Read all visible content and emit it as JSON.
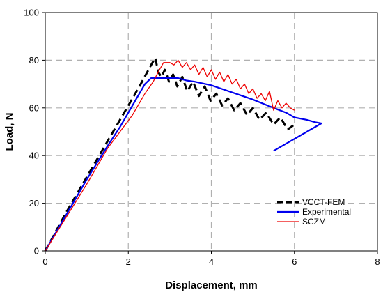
{
  "chart_data": {
    "type": "line",
    "title": "",
    "xlabel": "Displacement, mm",
    "ylabel": "Load, N",
    "xlim": [
      0,
      8
    ],
    "ylim": [
      0,
      100
    ],
    "xticks": [
      0,
      2,
      4,
      6,
      8
    ],
    "yticks": [
      0,
      20,
      40,
      60,
      80,
      100
    ],
    "grid": "dashed",
    "legend_position": "bottom-right",
    "series": [
      {
        "name": "VCCT-FEM",
        "color": "#000000",
        "style": "dashed",
        "points": [
          [
            0,
            0
          ],
          [
            0.5,
            16
          ],
          [
            1.0,
            31
          ],
          [
            1.5,
            46
          ],
          [
            2.0,
            61
          ],
          [
            2.3,
            70
          ],
          [
            2.55,
            78
          ],
          [
            2.65,
            81
          ],
          [
            2.72,
            75
          ],
          [
            2.8,
            73
          ],
          [
            2.88,
            76
          ],
          [
            2.98,
            71
          ],
          [
            3.08,
            74
          ],
          [
            3.18,
            69
          ],
          [
            3.3,
            73
          ],
          [
            3.42,
            67
          ],
          [
            3.56,
            71
          ],
          [
            3.7,
            65
          ],
          [
            3.84,
            69
          ],
          [
            3.98,
            63
          ],
          [
            4.12,
            66
          ],
          [
            4.26,
            61
          ],
          [
            4.4,
            64
          ],
          [
            4.55,
            59
          ],
          [
            4.7,
            62
          ],
          [
            4.86,
            57
          ],
          [
            5.0,
            60
          ],
          [
            5.16,
            55
          ],
          [
            5.32,
            58
          ],
          [
            5.5,
            53
          ],
          [
            5.66,
            56
          ],
          [
            5.84,
            51
          ],
          [
            6.0,
            53
          ]
        ]
      },
      {
        "name": "Experimental",
        "color": "#0000ee",
        "style": "solid",
        "points": [
          [
            0,
            0
          ],
          [
            0.5,
            15
          ],
          [
            1.0,
            30
          ],
          [
            1.5,
            44
          ],
          [
            1.8,
            52
          ],
          [
            2.0,
            58
          ],
          [
            2.2,
            64
          ],
          [
            2.4,
            70
          ],
          [
            2.55,
            72.5
          ],
          [
            3.0,
            72.5
          ],
          [
            3.2,
            72.5
          ],
          [
            3.4,
            71.5
          ],
          [
            3.6,
            71
          ],
          [
            4.0,
            69.5
          ],
          [
            4.5,
            66.5
          ],
          [
            5.0,
            63.5
          ],
          [
            5.5,
            60
          ],
          [
            5.8,
            58
          ],
          [
            6.0,
            56
          ],
          [
            6.3,
            55
          ],
          [
            6.5,
            54
          ],
          [
            6.65,
            53.5
          ],
          [
            6.3,
            50
          ],
          [
            5.9,
            46
          ],
          [
            5.5,
            42
          ]
        ]
      },
      {
        "name": "SCZM",
        "color": "#ee0000",
        "style": "solid",
        "points": [
          [
            0,
            0
          ],
          [
            0.5,
            14
          ],
          [
            1.0,
            28
          ],
          [
            1.5,
            43
          ],
          [
            1.8,
            50
          ],
          [
            2.1,
            57
          ],
          [
            2.4,
            66
          ],
          [
            2.6,
            71
          ],
          [
            2.75,
            76
          ],
          [
            2.85,
            79
          ],
          [
            3.0,
            79
          ],
          [
            3.1,
            78
          ],
          [
            3.2,
            80
          ],
          [
            3.3,
            77
          ],
          [
            3.4,
            79
          ],
          [
            3.5,
            76
          ],
          [
            3.6,
            78
          ],
          [
            3.7,
            74
          ],
          [
            3.8,
            77
          ],
          [
            3.9,
            73
          ],
          [
            4.0,
            76
          ],
          [
            4.1,
            72
          ],
          [
            4.2,
            75
          ],
          [
            4.3,
            71
          ],
          [
            4.4,
            74
          ],
          [
            4.5,
            70
          ],
          [
            4.6,
            72
          ],
          [
            4.7,
            68
          ],
          [
            4.8,
            70
          ],
          [
            4.9,
            66
          ],
          [
            5.0,
            68
          ],
          [
            5.1,
            64
          ],
          [
            5.2,
            66
          ],
          [
            5.3,
            63
          ],
          [
            5.4,
            67
          ],
          [
            5.5,
            59
          ],
          [
            5.6,
            63
          ],
          [
            5.7,
            60
          ],
          [
            5.8,
            62
          ],
          [
            5.9,
            60
          ],
          [
            6.0,
            59
          ]
        ]
      }
    ]
  }
}
